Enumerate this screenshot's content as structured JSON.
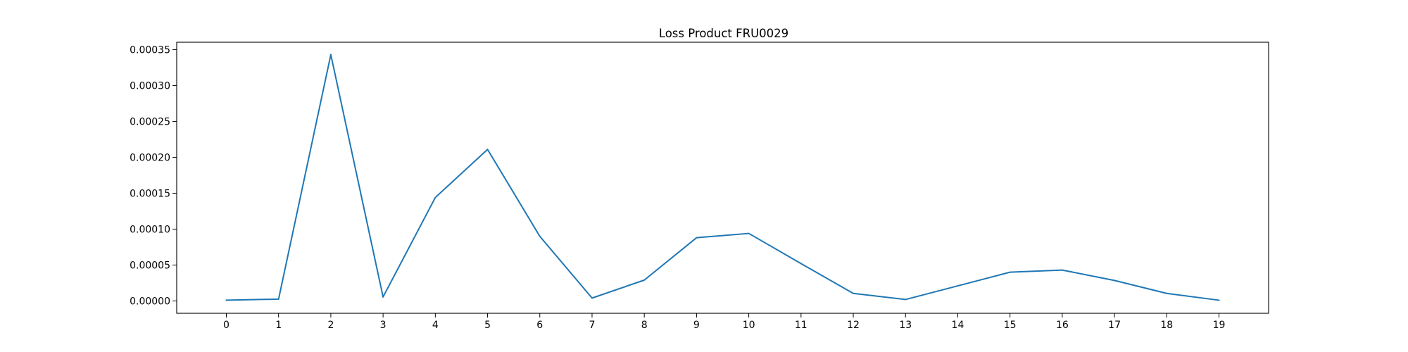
{
  "chart_data": {
    "type": "line",
    "title": "Loss Product FRU0029",
    "xlabel": "",
    "ylabel": "",
    "x": [
      0,
      1,
      2,
      3,
      4,
      5,
      6,
      7,
      8,
      9,
      10,
      11,
      12,
      13,
      14,
      15,
      16,
      17,
      18,
      19
    ],
    "series": [
      {
        "values": [
          1e-06,
          2.5e-06,
          0.000343,
          5.5e-06,
          0.000144,
          0.000211,
          9e-05,
          4e-06,
          2.9e-05,
          8.8e-05,
          9.4e-05,
          5.2e-05,
          1.05e-05,
          2e-06,
          2.1e-05,
          4e-05,
          4.3e-05,
          2.85e-05,
          1.05e-05,
          1e-06
        ],
        "color": "#1f77b4"
      }
    ],
    "xlim": [
      -0.95,
      19.95
    ],
    "ylim": [
      -1.72e-05,
      0.0003602
    ],
    "xticks": [
      0,
      1,
      2,
      3,
      4,
      5,
      6,
      7,
      8,
      9,
      10,
      11,
      12,
      13,
      14,
      15,
      16,
      17,
      18,
      19
    ],
    "xtick_labels": [
      "0",
      "1",
      "2",
      "3",
      "4",
      "5",
      "6",
      "7",
      "8",
      "9",
      "10",
      "11",
      "12",
      "13",
      "14",
      "15",
      "16",
      "17",
      "18",
      "19"
    ],
    "yticks": [
      0,
      5e-05,
      0.0001,
      0.00015,
      0.0002,
      0.00025,
      0.0003,
      0.00035
    ],
    "ytick_labels": [
      "0.00000",
      "0.00005",
      "0.00010",
      "0.00015",
      "0.00020",
      "0.00025",
      "0.00030",
      "0.00035"
    ],
    "grid": false,
    "legend": "none"
  }
}
